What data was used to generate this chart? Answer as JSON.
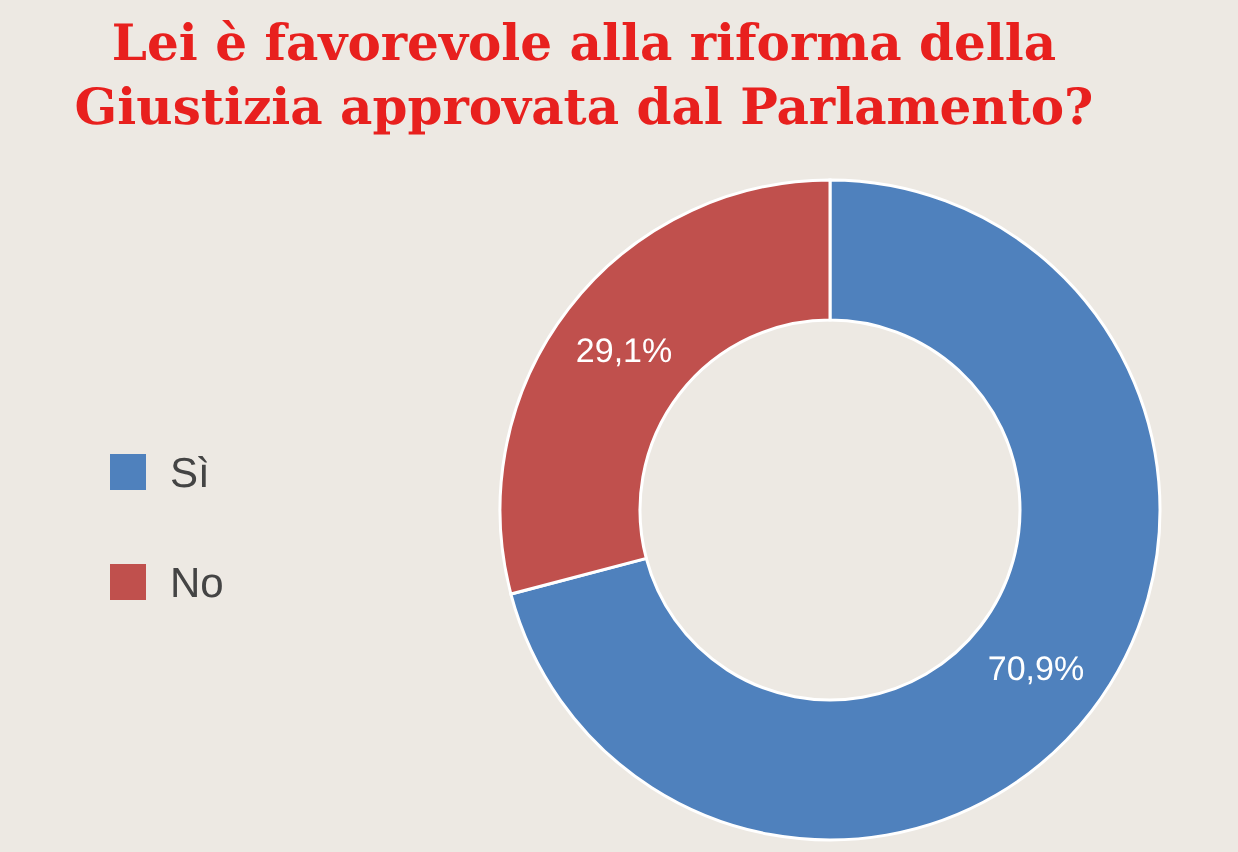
{
  "chart_data": {
    "type": "donut",
    "title": "Lei è favorevole alla riforma della\nGiustizia approvata dal Parlamento?",
    "categories": [
      "Sì",
      "No"
    ],
    "values": [
      70.9,
      29.1
    ],
    "colors": [
      "#4f81bd",
      "#c0504d"
    ],
    "value_labels": [
      "70,9%",
      "29,1%"
    ],
    "legend": "left"
  }
}
